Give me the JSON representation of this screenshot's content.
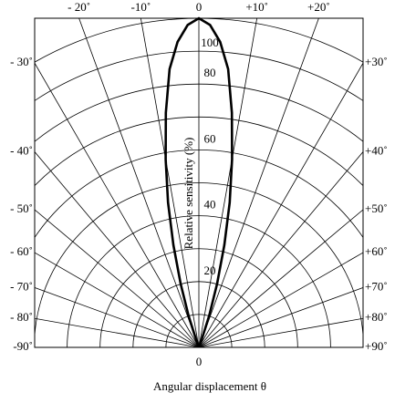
{
  "chart_data": {
    "type": "polar",
    "x_label": "Angular displacement  θ",
    "r_label": "Relative sensitivity (%)",
    "series": [
      {
        "color": "#000000",
        "angles": [
          -20,
          -18,
          -16,
          -14,
          -12,
          -10,
          -8,
          -6,
          -4,
          -2,
          0,
          2,
          4,
          6,
          8,
          10,
          12,
          14,
          16,
          18,
          20
        ],
        "values": [
          2,
          10,
          20,
          32,
          45,
          58,
          72,
          85,
          93,
          98,
          100,
          98,
          93,
          85,
          72,
          58,
          45,
          32,
          20,
          10,
          2
        ]
      }
    ],
    "rlim": [
      0,
      100
    ],
    "rticks": [
      0,
      20,
      40,
      60,
      80,
      100
    ],
    "rminor": [
      10,
      30,
      50,
      70,
      90
    ],
    "angle_ticks": [
      {
        "value": -90,
        "label": "-90˚"
      },
      {
        "value": -80,
        "label": "- 80˚"
      },
      {
        "value": -70,
        "label": "- 70˚"
      },
      {
        "value": -60,
        "label": "- 60˚"
      },
      {
        "value": -50,
        "label": "- 50˚"
      },
      {
        "value": -40,
        "label": "- 40˚"
      },
      {
        "value": -30,
        "label": "- 30˚"
      },
      {
        "value": -20,
        "label": "- 20˚"
      },
      {
        "value": -10,
        "label": "-10˚"
      },
      0,
      {
        "value": 10,
        "label": "+10˚"
      },
      {
        "value": 20,
        "label": "+20˚"
      },
      {
        "value": 30,
        "label": "+30˚"
      },
      {
        "value": 40,
        "label": "+40˚"
      },
      {
        "value": 50,
        "label": "+50˚"
      },
      {
        "value": 60,
        "label": "+60˚"
      },
      {
        "value": 70,
        "label": "+70˚"
      },
      {
        "value": 80,
        "label": "+80˚"
      },
      {
        "value": 90,
        "label": "+90˚"
      }
    ]
  }
}
